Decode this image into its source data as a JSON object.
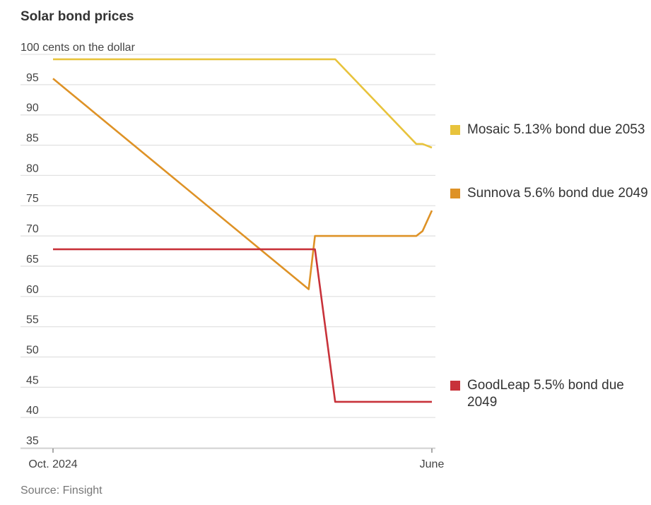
{
  "chart_data": {
    "type": "line",
    "title": "Solar bond prices",
    "ylabel": "cents on the dollar",
    "ylim": [
      35,
      100
    ],
    "yticks": [
      100,
      95,
      90,
      85,
      80,
      75,
      70,
      65,
      60,
      55,
      50,
      45,
      40,
      35
    ],
    "ytick_labels": [
      "100 cents on the dollar",
      "95",
      "90",
      "85",
      "80",
      "75",
      "70",
      "65",
      "60",
      "55",
      "50",
      "45",
      "40",
      "35"
    ],
    "x_unit": "days since Oct. 1, 2024",
    "xlim": [
      0,
      243
    ],
    "xticks": [
      {
        "x": 0,
        "label": "Oct. 2024"
      },
      {
        "x": 243,
        "label": "June"
      }
    ],
    "grid": true,
    "legend_placement": "right",
    "series": [
      {
        "name": "Mosaic 5.13% bond due 2053",
        "color": "#e8c33c",
        "points": [
          [
            0,
            99.2
          ],
          [
            181,
            99.2
          ],
          [
            233,
            85.2
          ],
          [
            237,
            85.2
          ],
          [
            243,
            84.6
          ]
        ]
      },
      {
        "name": "Sunnova 5.6% bond due 2049",
        "color": "#de9226",
        "points": [
          [
            0,
            96
          ],
          [
            164,
            61.2
          ],
          [
            168,
            70
          ],
          [
            233,
            70
          ],
          [
            237,
            70.8
          ],
          [
            243,
            74.2
          ]
        ]
      },
      {
        "name": "GoodLeap 5.5% bond due 2049",
        "color": "#c8323a",
        "points": [
          [
            0,
            67.8
          ],
          [
            168,
            67.8
          ],
          [
            181,
            42.6
          ],
          [
            243,
            42.6
          ]
        ]
      }
    ],
    "source": "Source: Finsight"
  }
}
